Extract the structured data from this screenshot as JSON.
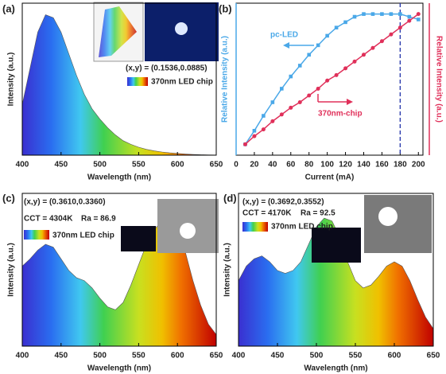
{
  "chart_data": [
    {
      "type": "area",
      "panel": "(a)",
      "xlabel": "Wavelength (nm)",
      "ylabel": "Intensity (a.u.)",
      "x": [
        400,
        410,
        420,
        430,
        440,
        450,
        460,
        470,
        480,
        490,
        500,
        510,
        520,
        530,
        540,
        550,
        560,
        570,
        580,
        590,
        600,
        610,
        620,
        630,
        640,
        650
      ],
      "values": [
        0.35,
        0.6,
        0.85,
        0.97,
        0.95,
        0.85,
        0.7,
        0.55,
        0.42,
        0.32,
        0.25,
        0.19,
        0.14,
        0.1,
        0.075,
        0.055,
        0.04,
        0.03,
        0.022,
        0.016,
        0.012,
        0.008,
        0.005,
        0.003,
        0.002,
        0.001
      ],
      "xlim": [
        400,
        650
      ],
      "xticks": [
        400,
        450,
        500,
        550,
        600,
        650
      ],
      "ylim": [
        0,
        1.05
      ],
      "annotations": [
        "(x,y) = (0.1536,0.0885)",
        "370nm LED chip"
      ]
    },
    {
      "type": "line",
      "panel": "(b)",
      "xlabel": "Current (mA)",
      "ylabel": "Relative Intensity (a.u.)",
      "y2label": "Relative Intensity (a.u.)",
      "x": [
        10,
        20,
        30,
        40,
        50,
        60,
        70,
        80,
        90,
        100,
        110,
        120,
        130,
        140,
        150,
        160,
        170,
        180,
        190,
        200
      ],
      "series": [
        {
          "name": "pc-LED",
          "color": "#4aa8e8",
          "marker": "square",
          "values": [
            0.08,
            0.18,
            0.29,
            0.39,
            0.49,
            0.58,
            0.66,
            0.74,
            0.81,
            0.88,
            0.94,
            0.98,
            1.02,
            1.04,
            1.04,
            1.04,
            1.04,
            1.04,
            1.02,
            1.0
          ]
        },
        {
          "name": "370nm-chip",
          "color": "#e0305a",
          "marker": "circle",
          "values": [
            0.08,
            0.14,
            0.19,
            0.25,
            0.3,
            0.35,
            0.39,
            0.44,
            0.49,
            0.55,
            0.59,
            0.64,
            0.69,
            0.74,
            0.79,
            0.84,
            0.89,
            0.94,
            0.99,
            1.04
          ]
        }
      ],
      "xlim": [
        0,
        205
      ],
      "xticks": [
        0,
        20,
        40,
        60,
        80,
        100,
        120,
        140,
        160,
        180,
        200
      ],
      "ylim": [
        0,
        1.12
      ],
      "marker_x": 180
    },
    {
      "type": "area",
      "panel": "(c)",
      "xlabel": "Wavelength (nm)",
      "ylabel": "Intensity (a.u.)",
      "x": [
        400,
        410,
        420,
        430,
        440,
        450,
        460,
        470,
        480,
        490,
        500,
        510,
        520,
        530,
        540,
        550,
        560,
        570,
        580,
        590,
        600,
        610,
        620,
        630,
        640,
        650
      ],
      "values": [
        0.55,
        0.6,
        0.66,
        0.7,
        0.68,
        0.6,
        0.52,
        0.47,
        0.45,
        0.4,
        0.33,
        0.27,
        0.25,
        0.3,
        0.42,
        0.56,
        0.7,
        0.8,
        0.86,
        0.87,
        0.8,
        0.65,
        0.45,
        0.28,
        0.15,
        0.08
      ],
      "xlim": [
        400,
        650
      ],
      "xticks": [
        400,
        450,
        500,
        550,
        600,
        650
      ],
      "ylim": [
        0,
        1.05
      ],
      "annotations": [
        "(x,y) = (0.3610,0.3360)",
        "CCT = 4304K",
        "Ra = 86.9",
        "370nm LED chip"
      ]
    },
    {
      "type": "area",
      "panel": "(d)",
      "xlabel": "Wavelength (nm)",
      "ylabel": "Intensity (a.u.)",
      "x": [
        400,
        410,
        420,
        430,
        440,
        450,
        460,
        470,
        480,
        490,
        500,
        510,
        520,
        530,
        540,
        550,
        560,
        570,
        580,
        590,
        600,
        610,
        620,
        630,
        640,
        650
      ],
      "values": [
        0.45,
        0.55,
        0.6,
        0.62,
        0.58,
        0.52,
        0.5,
        0.52,
        0.58,
        0.7,
        0.82,
        0.88,
        0.86,
        0.75,
        0.58,
        0.45,
        0.4,
        0.42,
        0.48,
        0.55,
        0.58,
        0.55,
        0.45,
        0.32,
        0.2,
        0.12
      ],
      "xlim": [
        400,
        650
      ],
      "xticks": [
        400,
        450,
        500,
        550,
        600,
        650
      ],
      "ylim": [
        0,
        1.05
      ],
      "annotations": [
        "(x,y) = (0.3692,0.3552)",
        "CCT = 4170K",
        "Ra = 92.5",
        "370nm LED chip"
      ]
    }
  ]
}
